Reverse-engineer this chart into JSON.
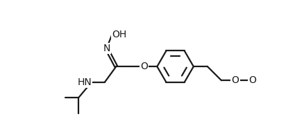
{
  "bg_color": "#ffffff",
  "line_color": "#1a1a1a",
  "line_width": 1.6,
  "font_size": 10,
  "figsize": [
    4.25,
    1.85
  ],
  "dpi": 100,
  "xlim": [
    -0.5,
    9.5
  ],
  "ylim": [
    -0.2,
    4.8
  ]
}
